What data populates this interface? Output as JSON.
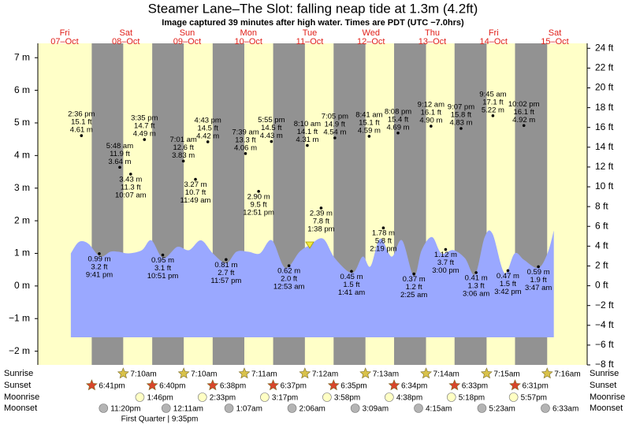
{
  "chart_data": {
    "type": "tide",
    "title": "Steamer Lane–The Slot: falling  neap tide at 1.3m (4.2ft)",
    "subtitle": "Image captured 39 minutes after high water. Times are PDT (UTC −7.0hrs)",
    "ylim": [
      -2.42,
      7.44
    ],
    "yticks": [
      {
        "value": 7,
        "label": "7 m"
      },
      {
        "value": 6,
        "label": "6 m"
      },
      {
        "value": 5,
        "label": "5 m"
      },
      {
        "value": 4,
        "label": "4 m"
      },
      {
        "value": 3,
        "label": "3 m"
      },
      {
        "value": 2,
        "label": "2 m"
      },
      {
        "value": 1,
        "label": "1 m"
      },
      {
        "value": 0,
        "label": "0 m"
      },
      {
        "value": -1,
        "label": "−1 m"
      },
      {
        "value": -2,
        "label": "−2 m"
      }
    ],
    "y2lim": [
      -8,
      24.5
    ],
    "y2ticks": [
      {
        "value": 24,
        "label": "24 ft"
      },
      {
        "value": 22,
        "label": "22 ft"
      },
      {
        "value": 20,
        "label": "20 ft"
      },
      {
        "value": 18,
        "label": "18 ft"
      },
      {
        "value": 16,
        "label": "16 ft"
      },
      {
        "value": 14,
        "label": "14 ft"
      },
      {
        "value": 12,
        "label": "12 ft"
      },
      {
        "value": 10,
        "label": "10 ft"
      },
      {
        "value": 8,
        "label": "8 ft"
      },
      {
        "value": 6,
        "label": "6 ft"
      },
      {
        "value": 4,
        "label": "4 ft"
      },
      {
        "value": 2,
        "label": "2 ft"
      },
      {
        "value": 0,
        "label": "0 ft"
      },
      {
        "value": -2,
        "label": "−2 ft"
      },
      {
        "value": -4,
        "label": "−4 ft"
      },
      {
        "value": -6,
        "label": "−6 ft"
      },
      {
        "value": -8,
        "label": "−8 ft"
      }
    ],
    "curve": {
      "color": "#9aa8ff",
      "x": [
        10.4,
        13.6,
        17.3,
        22.0,
        26.1,
        29.2,
        33.3,
        38.6,
        42.3,
        47.0,
        52.6,
        57.3,
        62.0,
        66.7,
        72.0,
        76.1,
        80.7,
        85.4,
        90.1,
        95.4,
        101.1,
        105.1,
        110.4,
        115.1,
        122.0,
        126.1,
        129.2,
        133.0,
        137.6,
        141.7,
        146.4,
        149.5,
        153.6,
        157.3,
        162.0,
        166.7,
        170.7,
        174.5,
        177.6,
        182.3,
        186.4,
        190.1,
        195.7,
        199.4,
        201.9
      ],
      "values": [
        1.0,
        1.35,
        1.3,
        0.9,
        1.05,
        1.05,
        1.0,
        1.1,
        1.4,
        0.85,
        1.2,
        1.1,
        1.4,
        1.0,
        0.7,
        1.05,
        1.05,
        1.0,
        1.4,
        0.55,
        1.05,
        1.25,
        1.45,
        0.85,
        0.4,
        0.9,
        0.6,
        1.45,
        0.9,
        1.4,
        0.3,
        1.1,
        1.5,
        1.0,
        1.1,
        0.85,
        0.35,
        1.5,
        1.6,
        0.4,
        1.0,
        0.8,
        0.55,
        1.0,
        1.7
      ]
    },
    "days": [
      {
        "day": "Fri",
        "date": "07–Oct",
        "highs": [
          {
            "time": "2:36 pm",
            "value": 4.61,
            "value_labels": [
              "4.61 m",
              "15.1 ft"
            ]
          }
        ],
        "lows": [
          {
            "time": "9:41 pm",
            "value": 0.99,
            "value_labels": [
              "0.99 m",
              "3.2 ft"
            ]
          }
        ]
      },
      {
        "day": "Sat",
        "date": "08–Oct",
        "highs": [
          {
            "time": "5:48 am",
            "value": 3.64,
            "value_labels": [
              "3.64 m",
              "11.9 ft"
            ]
          },
          {
            "time": "3:35 pm",
            "value": 4.49,
            "value_labels": [
              "4.49 m",
              "14.7 ft"
            ]
          }
        ],
        "lows": [
          {
            "time": "10:07 am",
            "value": 3.43,
            "value_labels": [
              "3.43 m",
              "11.3 ft"
            ]
          },
          {
            "time": "10:51 pm",
            "value": 0.95,
            "value_labels": [
              "0.95 m",
              "3.1 ft"
            ]
          }
        ]
      },
      {
        "day": "Sun",
        "date": "09–Oct",
        "highs": [
          {
            "time": "7:01 am",
            "value": 3.83,
            "value_labels": [
              "3.83 m",
              "12.6 ft"
            ]
          },
          {
            "time": "4:43 pm",
            "value": 4.42,
            "value_labels": [
              "4.42 m",
              "14.5 ft"
            ]
          }
        ],
        "lows": [
          {
            "time": "11:49 am",
            "value": 3.27,
            "value_labels": [
              "3.27 m",
              "10.7 ft"
            ]
          },
          {
            "time": "11:57 pm",
            "value": 0.81,
            "value_labels": [
              "0.81 m",
              "2.7 ft"
            ]
          }
        ]
      },
      {
        "day": "Mon",
        "date": "10–Oct",
        "highs": [
          {
            "time": "7:39 am",
            "value": 4.06,
            "value_labels": [
              "4.06 m",
              "13.3 ft"
            ]
          },
          {
            "time": "5:55 pm",
            "value": 4.43,
            "value_labels": [
              "4.43 m",
              "14.5 ft"
            ]
          }
        ],
        "lows": [
          {
            "time": "12:51 pm",
            "value": 2.9,
            "value_labels": [
              "2.90 m",
              "9.5 ft"
            ]
          }
        ]
      },
      {
        "day": "Tue",
        "date": "11–Oct",
        "highs": [
          {
            "time": "8:10 am",
            "value": 4.31,
            "value_labels": [
              "4.31 m",
              "14.1 ft"
            ]
          },
          {
            "time": "7:05 pm",
            "value": 4.54,
            "value_labels": [
              "4.54 m",
              "14.9 ft"
            ]
          }
        ],
        "lows": [
          {
            "time": "12:53 am",
            "value": 0.62,
            "value_labels": [
              "0.62 m",
              "2.0 ft"
            ]
          },
          {
            "time": "1:38 pm",
            "value": 2.39,
            "value_labels": [
              "2.39 m",
              "7.8 ft"
            ]
          }
        ]
      },
      {
        "day": "Wed",
        "date": "12–Oct",
        "highs": [
          {
            "time": "8:41 am",
            "value": 4.59,
            "value_labels": [
              "4.59 m",
              "15.1 ft"
            ]
          },
          {
            "time": "8:08 pm",
            "value": 4.69,
            "value_labels": [
              "4.69 m",
              "15.4 ft"
            ]
          }
        ],
        "lows": [
          {
            "time": "1:41 am",
            "value": 0.45,
            "value_labels": [
              "0.45 m",
              "1.5 ft"
            ]
          },
          {
            "time": "2:19 pm",
            "value": 1.78,
            "value_labels": [
              "1.78 m",
              "5.8 ft"
            ]
          }
        ]
      },
      {
        "day": "Thu",
        "date": "13–Oct",
        "highs": [
          {
            "time": "9:12 am",
            "value": 4.9,
            "value_labels": [
              "4.90 m",
              "16.1 ft"
            ]
          },
          {
            "time": "9:07 pm",
            "value": 4.83,
            "value_labels": [
              "4.83 m",
              "15.8 ft"
            ]
          }
        ],
        "lows": [
          {
            "time": "2:25 am",
            "value": 0.37,
            "value_labels": [
              "0.37 m",
              "1.2 ft"
            ]
          },
          {
            "time": "3:00 pm",
            "value": 1.12,
            "value_labels": [
              "1.12 m",
              "3.7 ft"
            ]
          }
        ]
      },
      {
        "day": "Fri",
        "date": "14–Oct",
        "highs": [
          {
            "time": "9:45 am",
            "value": 5.22,
            "value_labels": [
              "5.22 m",
              "17.1 ft"
            ]
          },
          {
            "time": "10:02 pm",
            "value": 4.92,
            "value_labels": [
              "4.92 m",
              "16.1 ft"
            ]
          }
        ],
        "lows": [
          {
            "time": "3:06 am",
            "value": 0.41,
            "value_labels": [
              "0.41 m",
              "1.3 ft"
            ]
          },
          {
            "time": "3:42 pm",
            "value": 0.47,
            "value_labels": [
              "0.47 m",
              "1.5 ft"
            ]
          }
        ]
      },
      {
        "day": "Sat",
        "date": "15–Oct",
        "highs": [],
        "lows": [
          {
            "time": "3:47 am",
            "value": 0.59,
            "value_labels": [
              "0.59 m",
              "1.9 ft"
            ]
          }
        ]
      }
    ],
    "events": {
      "sunrise": {
        "label": "Sunrise",
        "times": [
          null,
          "7:10am",
          "7:10am",
          "7:11am",
          "7:12am",
          "7:13am",
          "7:14am",
          "7:15am",
          "7:16am"
        ]
      },
      "sunset": {
        "label": "Sunset",
        "times": [
          "6:41pm",
          "6:40pm",
          "6:38pm",
          "6:37pm",
          "6:35pm",
          "6:34pm",
          "6:33pm",
          "6:31pm",
          null
        ]
      },
      "moonrise": {
        "label": "Moonrise",
        "times": [
          null,
          "1:46pm",
          "2:33pm",
          "3:17pm",
          "3:58pm",
          "4:38pm",
          "5:18pm",
          "5:57pm",
          null
        ]
      },
      "moonset": {
        "label": "Moonset",
        "times": [
          "11:20pm",
          null,
          "12:11am",
          "1:07am",
          "2:06am",
          "3:09am",
          "4:15am",
          "5:23am",
          "6:33am"
        ]
      }
    },
    "moon_phases": [
      null,
      "First Quarter | 9:35pm",
      null,
      null,
      null,
      null,
      null,
      null,
      null
    ]
  }
}
